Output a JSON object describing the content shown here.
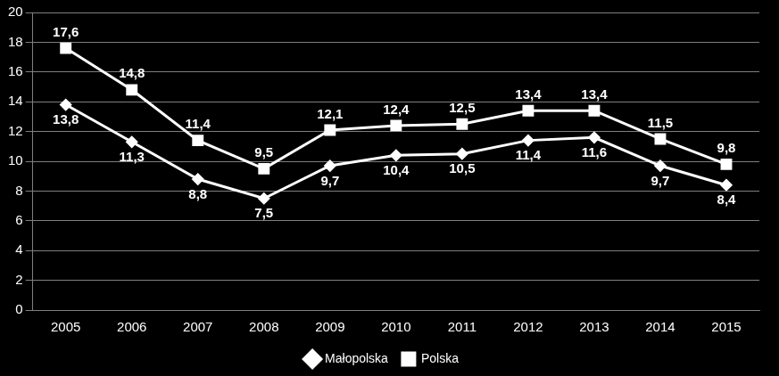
{
  "chart_data": {
    "type": "line",
    "categories": [
      "2005",
      "2006",
      "2007",
      "2008",
      "2009",
      "2010",
      "2011",
      "2012",
      "2013",
      "2014",
      "2015"
    ],
    "series": [
      {
        "name": "Małopolska",
        "color": "#ffffff",
        "marker": "diamond",
        "values": [
          13.8,
          11.3,
          8.8,
          7.5,
          9.7,
          10.4,
          10.5,
          11.4,
          11.6,
          9.7,
          8.4
        ],
        "value_labels": [
          "13,8",
          "11,3",
          "8,8",
          "7,5",
          "9,7",
          "10,4",
          "10,5",
          "11,4",
          "11,6",
          "9,7",
          "8,4"
        ]
      },
      {
        "name": "Polska",
        "color": "#ffffff",
        "marker": "square",
        "values": [
          17.6,
          14.8,
          11.4,
          9.5,
          12.1,
          12.4,
          12.5,
          13.4,
          13.4,
          11.5,
          9.8
        ],
        "value_labels": [
          "17,6",
          "14,8",
          "11,4",
          "9,5",
          "12,1",
          "12,4",
          "12,5",
          "13,4",
          "13,4",
          "11,5",
          "9,8"
        ]
      }
    ],
    "ylim": [
      0,
      20
    ],
    "yticks": [
      0,
      2,
      4,
      6,
      8,
      10,
      12,
      14,
      16,
      18,
      20
    ],
    "grid": true,
    "legend": "bottom",
    "data_labels": true
  }
}
